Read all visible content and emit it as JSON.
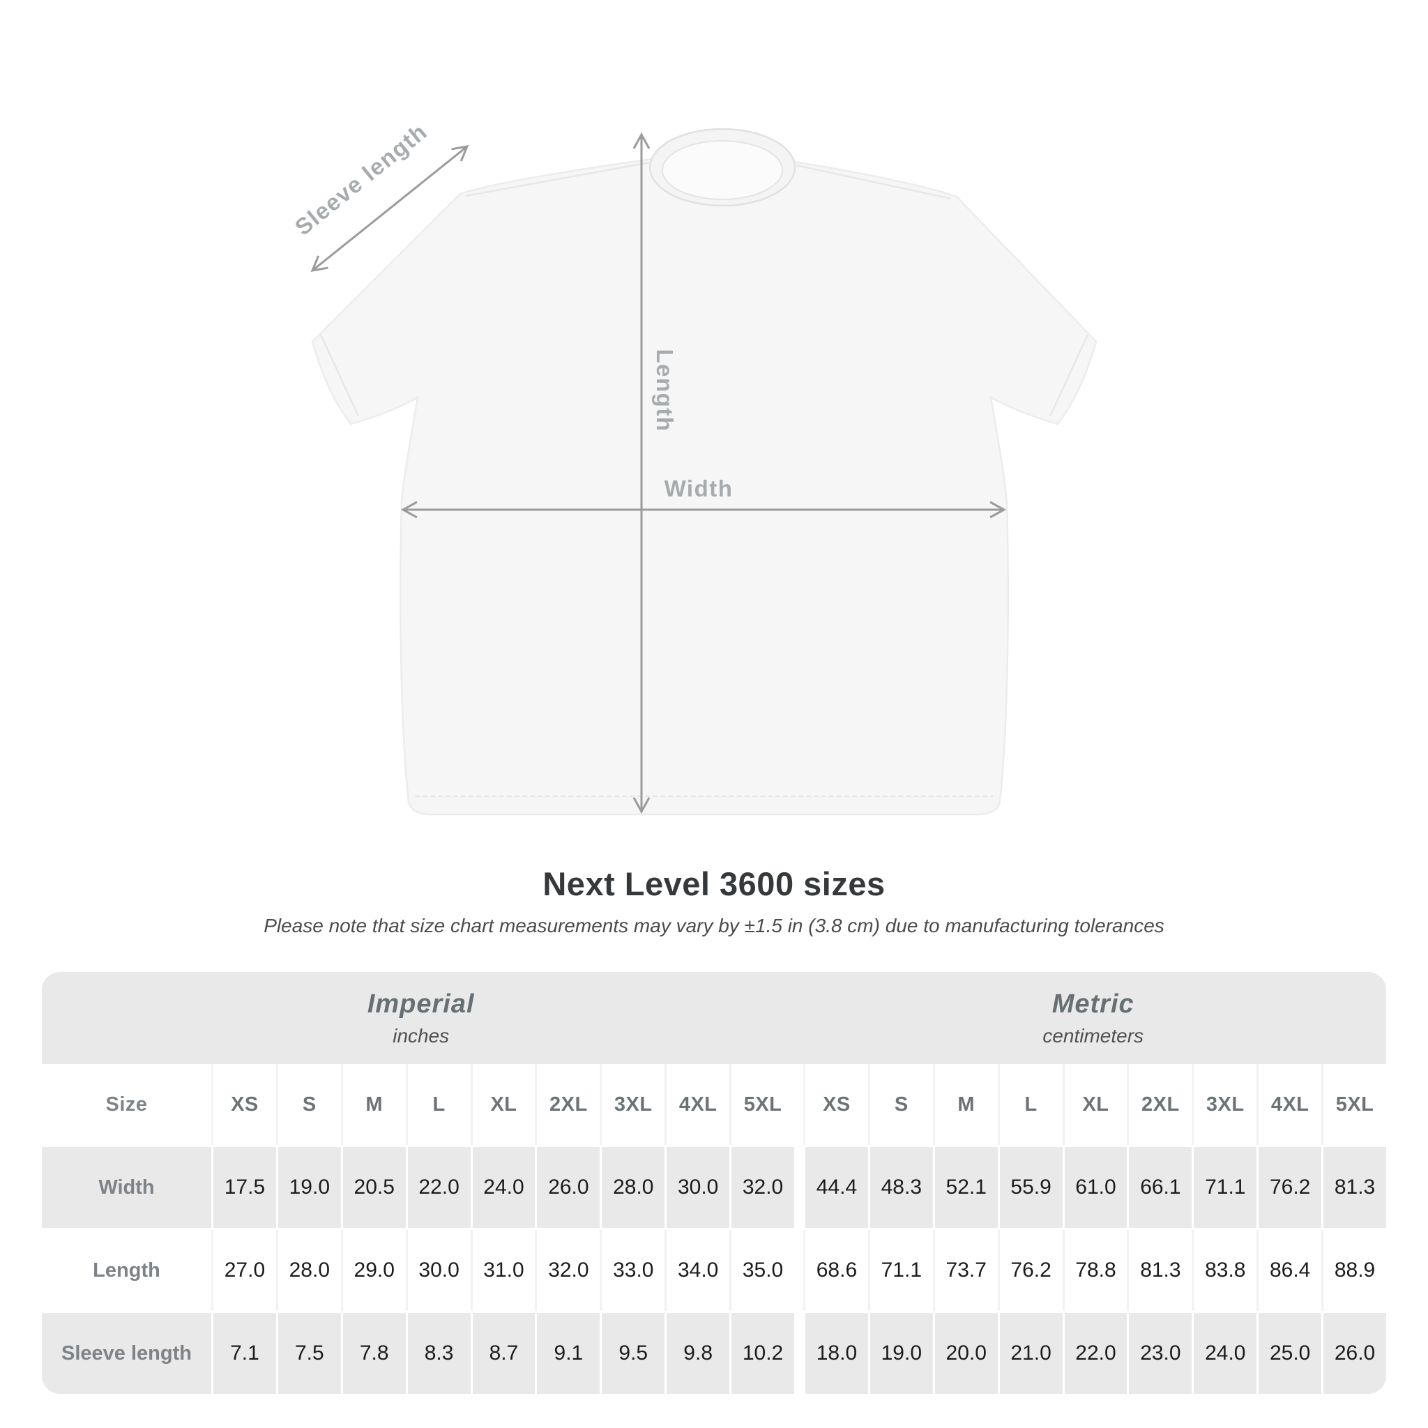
{
  "diagram": {
    "sleeve_length_label": "Sleeve length",
    "length_label": "Length",
    "width_label": "Width"
  },
  "title": "Next Level 3600 sizes",
  "subtitle": "Please note that size chart measurements may vary by ±1.5 in (3.8 cm) due to manufacturing tolerances",
  "chart_data": {
    "type": "table",
    "title": "Next Level 3600 sizes",
    "size_column_header": "Size",
    "sections": [
      {
        "name": "Imperial",
        "unit": "inches",
        "sizes": [
          "XS",
          "S",
          "M",
          "L",
          "XL",
          "2XL",
          "3XL",
          "4XL",
          "5XL"
        ]
      },
      {
        "name": "Metric",
        "unit": "centimeters",
        "sizes": [
          "XS",
          "S",
          "M",
          "L",
          "XL",
          "2XL",
          "3XL",
          "4XL",
          "5XL"
        ]
      }
    ],
    "rows": [
      {
        "label": "Width",
        "imperial": [
          "17.5",
          "19.0",
          "20.5",
          "22.0",
          "24.0",
          "26.0",
          "28.0",
          "30.0",
          "32.0"
        ],
        "metric": [
          "44.4",
          "48.3",
          "52.1",
          "55.9",
          "61.0",
          "66.1",
          "71.1",
          "76.2",
          "81.3"
        ]
      },
      {
        "label": "Length",
        "imperial": [
          "27.0",
          "28.0",
          "29.0",
          "30.0",
          "31.0",
          "32.0",
          "33.0",
          "34.0",
          "35.0"
        ],
        "metric": [
          "68.6",
          "71.1",
          "73.7",
          "76.2",
          "78.8",
          "81.3",
          "83.8",
          "86.4",
          "88.9"
        ]
      },
      {
        "label": "Sleeve length",
        "imperial": [
          "7.1",
          "7.5",
          "7.8",
          "8.3",
          "8.7",
          "9.1",
          "9.5",
          "9.8",
          "10.2"
        ],
        "metric": [
          "18.0",
          "19.0",
          "20.0",
          "21.0",
          "22.0",
          "23.0",
          "24.0",
          "25.0",
          "26.0"
        ]
      }
    ]
  },
  "colors": {
    "band_gray": "#e9e9e9",
    "row_gray": "#e9e9e9",
    "section_header_text": "#667074",
    "column_header_text": "#6b7377",
    "row_label_text": "#7d8387",
    "value_text": "#1c1c1c",
    "title_text": "#36393b",
    "diagram_line": "#9b9b9b",
    "diagram_label_text": "#a6abad",
    "shirt_fill": "#f6f6f6"
  }
}
